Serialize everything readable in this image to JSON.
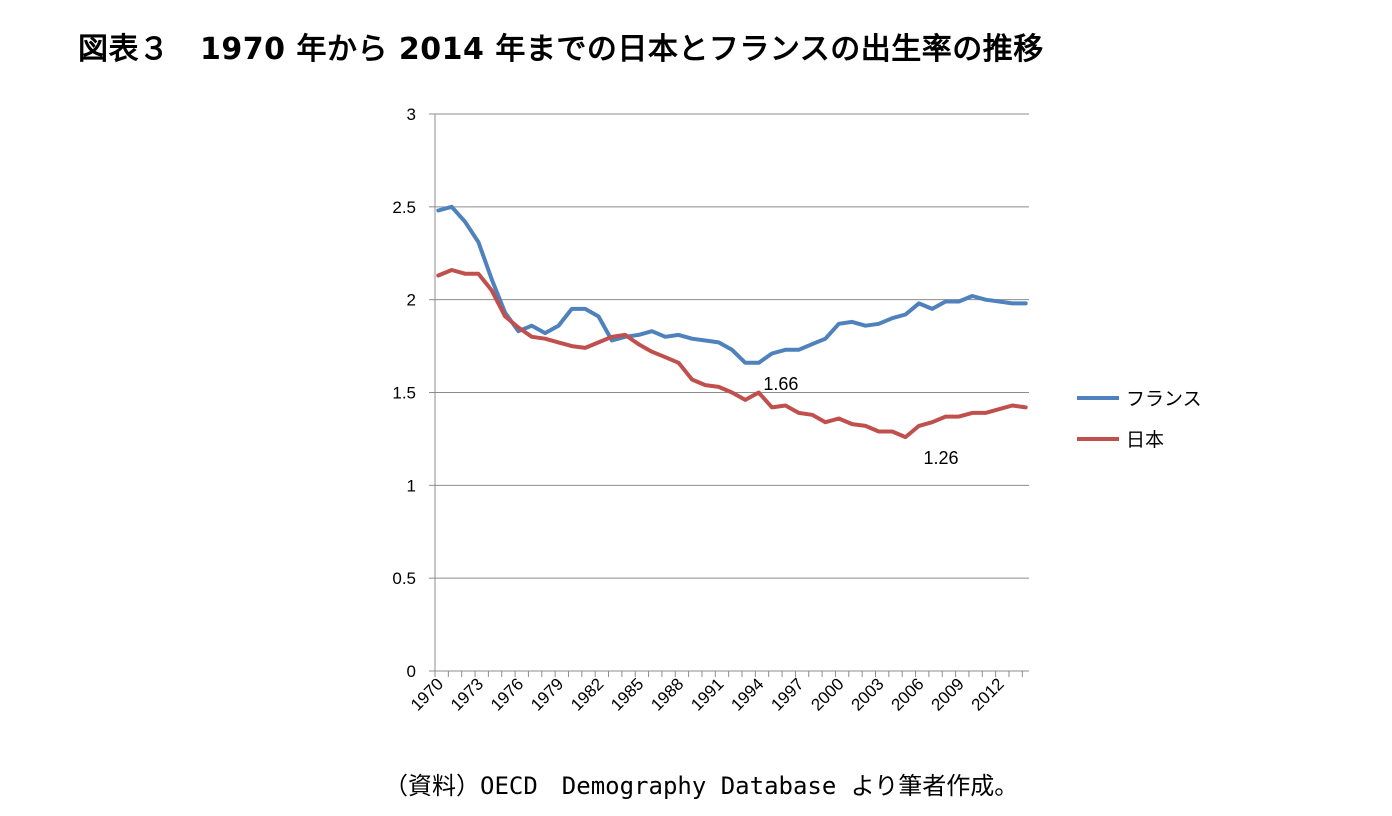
{
  "title": "図表３　1970 年から 2014 年までの日本とフランスの出生率の推移",
  "source": "（資料）OECD　Demography Database より筆者作成。",
  "chart_data": {
    "type": "line",
    "x": [
      1970,
      1971,
      1972,
      1973,
      1974,
      1975,
      1976,
      1977,
      1978,
      1979,
      1980,
      1981,
      1982,
      1983,
      1984,
      1985,
      1986,
      1987,
      1988,
      1989,
      1990,
      1991,
      1992,
      1993,
      1994,
      1995,
      1996,
      1997,
      1998,
      1999,
      2000,
      2001,
      2002,
      2003,
      2004,
      2005,
      2006,
      2007,
      2008,
      2009,
      2010,
      2011,
      2012,
      2013,
      2014
    ],
    "x_tick_labels": [
      "1970",
      "1973",
      "1976",
      "1979",
      "1982",
      "1985",
      "1988",
      "1991",
      "1994",
      "1997",
      "2000",
      "2003",
      "2006",
      "2009",
      "2012"
    ],
    "y_ticks": [
      "0",
      "0.5",
      "1",
      "1.5",
      "2",
      "2.5",
      "3"
    ],
    "ylim": [
      0,
      3
    ],
    "grid": "horizontal",
    "legend_position": "right",
    "series": [
      {
        "name": "フランス",
        "color": "#4F81BD",
        "values": [
          2.48,
          2.5,
          2.42,
          2.31,
          2.11,
          1.93,
          1.83,
          1.86,
          1.82,
          1.86,
          1.95,
          1.95,
          1.91,
          1.78,
          1.8,
          1.81,
          1.83,
          1.8,
          1.81,
          1.79,
          1.78,
          1.77,
          1.73,
          1.66,
          1.66,
          1.71,
          1.73,
          1.73,
          1.76,
          1.79,
          1.87,
          1.88,
          1.86,
          1.87,
          1.9,
          1.92,
          1.98,
          1.95,
          1.99,
          1.99,
          2.02,
          2.0,
          1.99,
          1.98,
          1.98
        ]
      },
      {
        "name": "日本",
        "color": "#C0504D",
        "values": [
          2.13,
          2.16,
          2.14,
          2.14,
          2.05,
          1.91,
          1.85,
          1.8,
          1.79,
          1.77,
          1.75,
          1.74,
          1.77,
          1.8,
          1.81,
          1.76,
          1.72,
          1.69,
          1.66,
          1.57,
          1.54,
          1.53,
          1.5,
          1.46,
          1.5,
          1.42,
          1.43,
          1.39,
          1.38,
          1.34,
          1.36,
          1.33,
          1.32,
          1.29,
          1.29,
          1.26,
          1.32,
          1.34,
          1.37,
          1.37,
          1.39,
          1.39,
          1.41,
          1.43,
          1.42
        ]
      }
    ],
    "annotations": [
      {
        "text": "1.66",
        "x": 1993,
        "y": 1.66
      },
      {
        "text": "1.26",
        "x": 2005,
        "y": 1.26
      }
    ]
  }
}
